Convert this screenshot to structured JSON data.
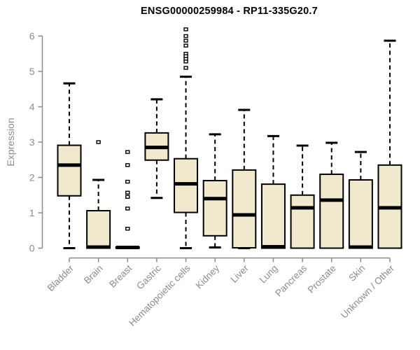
{
  "chart_data": {
    "type": "box",
    "title": "ENSG00000259984 - RP11-335G20.7",
    "ylabel": "Expression",
    "xlabel": "",
    "ylim": [
      0,
      6.2
    ],
    "yticks": [
      0,
      1,
      2,
      3,
      4,
      5,
      6
    ],
    "grid": false,
    "legend": false,
    "categories": [
      "Bladder",
      "Brain",
      "Breast",
      "Gastric",
      "Hematopoietic cells",
      "Kidney",
      "Liver",
      "Lung",
      "Pancreas",
      "Prostate",
      "Skin",
      "Unknown / Other"
    ],
    "series": [
      {
        "category": "Bladder",
        "low": 0,
        "q1": 1.48,
        "median": 2.35,
        "q3": 2.91,
        "high": 4.66,
        "outliers": []
      },
      {
        "category": "Brain",
        "low": 0,
        "q1": 0,
        "median": 0.03,
        "q3": 1.06,
        "high": 1.93,
        "outliers": [
          3.0
        ]
      },
      {
        "category": "Breast",
        "low": 0,
        "q1": 0,
        "median": 0.02,
        "q3": 0.03,
        "high": 0.03,
        "outliers": [
          2.72,
          2.35,
          1.88,
          1.57,
          1.45,
          1.12,
          0.55
        ]
      },
      {
        "category": "Gastric",
        "low": 1.42,
        "q1": 2.49,
        "median": 2.85,
        "q3": 3.26,
        "high": 4.21,
        "outliers": []
      },
      {
        "category": "Hematopoietic cells",
        "low": 0,
        "q1": 1.01,
        "median": 1.82,
        "q3": 2.53,
        "high": 4.85,
        "outliers": [
          6.19,
          6.0,
          5.87,
          5.73,
          5.5,
          5.43,
          5.35,
          5.28,
          5.1
        ]
      },
      {
        "category": "Kidney",
        "low": 0.02,
        "q1": 0.35,
        "median": 1.4,
        "q3": 1.91,
        "high": 3.22,
        "outliers": []
      },
      {
        "category": "Liver",
        "low": 0,
        "q1": 0.01,
        "median": 0.94,
        "q3": 2.21,
        "high": 3.91,
        "outliers": []
      },
      {
        "category": "Lung",
        "low": 0,
        "q1": 0,
        "median": 0.04,
        "q3": 1.81,
        "high": 3.17,
        "outliers": []
      },
      {
        "category": "Pancreas",
        "low": 0,
        "q1": 0,
        "median": 1.14,
        "q3": 1.5,
        "high": 2.9,
        "outliers": []
      },
      {
        "category": "Prostate",
        "low": 0,
        "q1": 0,
        "median": 1.36,
        "q3": 2.09,
        "high": 2.98,
        "outliers": []
      },
      {
        "category": "Skin",
        "low": 0,
        "q1": 0,
        "median": 0.03,
        "q3": 1.93,
        "high": 2.72,
        "outliers": []
      },
      {
        "category": "Unknown / Other",
        "low": 0,
        "q1": 0,
        "median": 1.14,
        "q3": 2.35,
        "high": 5.87,
        "outliers": []
      }
    ],
    "colors": {
      "box_fill": "#F0E9CE",
      "box_border": "#000000",
      "median": "#000000",
      "whisker": "#000000",
      "outlier_fill": "#FFFFFF",
      "axis": "#8B8B8B",
      "tick_label": "#8C8C8C",
      "title": "#000000",
      "background": "#FFFFFF"
    }
  }
}
